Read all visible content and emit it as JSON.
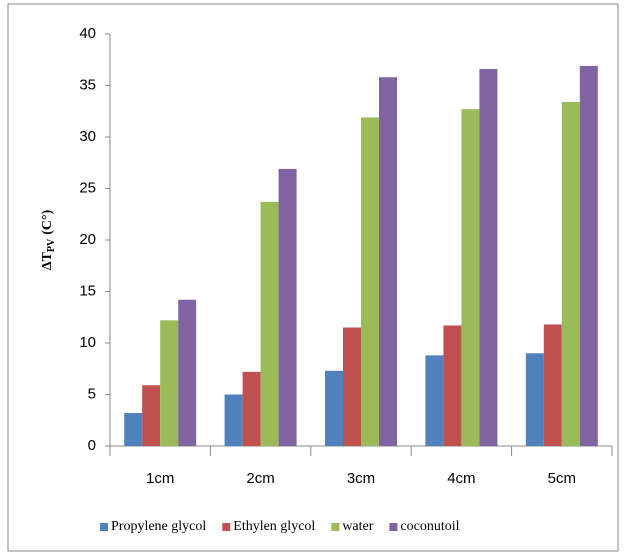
{
  "chart_data": {
    "type": "bar",
    "y_label_parts": [
      "ΔT",
      "PV",
      "(C°)"
    ],
    "categories": [
      "1cm",
      "2cm",
      "3cm",
      "4cm",
      "5cm"
    ],
    "series": [
      {
        "name": "Propylene glycol",
        "color": "#4f81bd",
        "values": [
          3.2,
          5.0,
          7.3,
          8.8,
          9.0
        ]
      },
      {
        "name": "Ethylen glycol",
        "color": "#c0504d",
        "values": [
          5.9,
          7.2,
          11.5,
          11.7,
          11.8
        ]
      },
      {
        "name": "water",
        "color": "#9bbb59",
        "values": [
          12.2,
          23.7,
          31.9,
          32.7,
          33.4
        ]
      },
      {
        "name": "coconutoil",
        "color": "#8064a2",
        "values": [
          14.2,
          26.9,
          35.8,
          36.6,
          36.9
        ]
      }
    ],
    "ylim": [
      0,
      40
    ],
    "yticks": [
      0,
      5,
      10,
      15,
      20,
      25,
      30,
      35,
      40
    ],
    "grid": false,
    "legend": "bottom"
  }
}
